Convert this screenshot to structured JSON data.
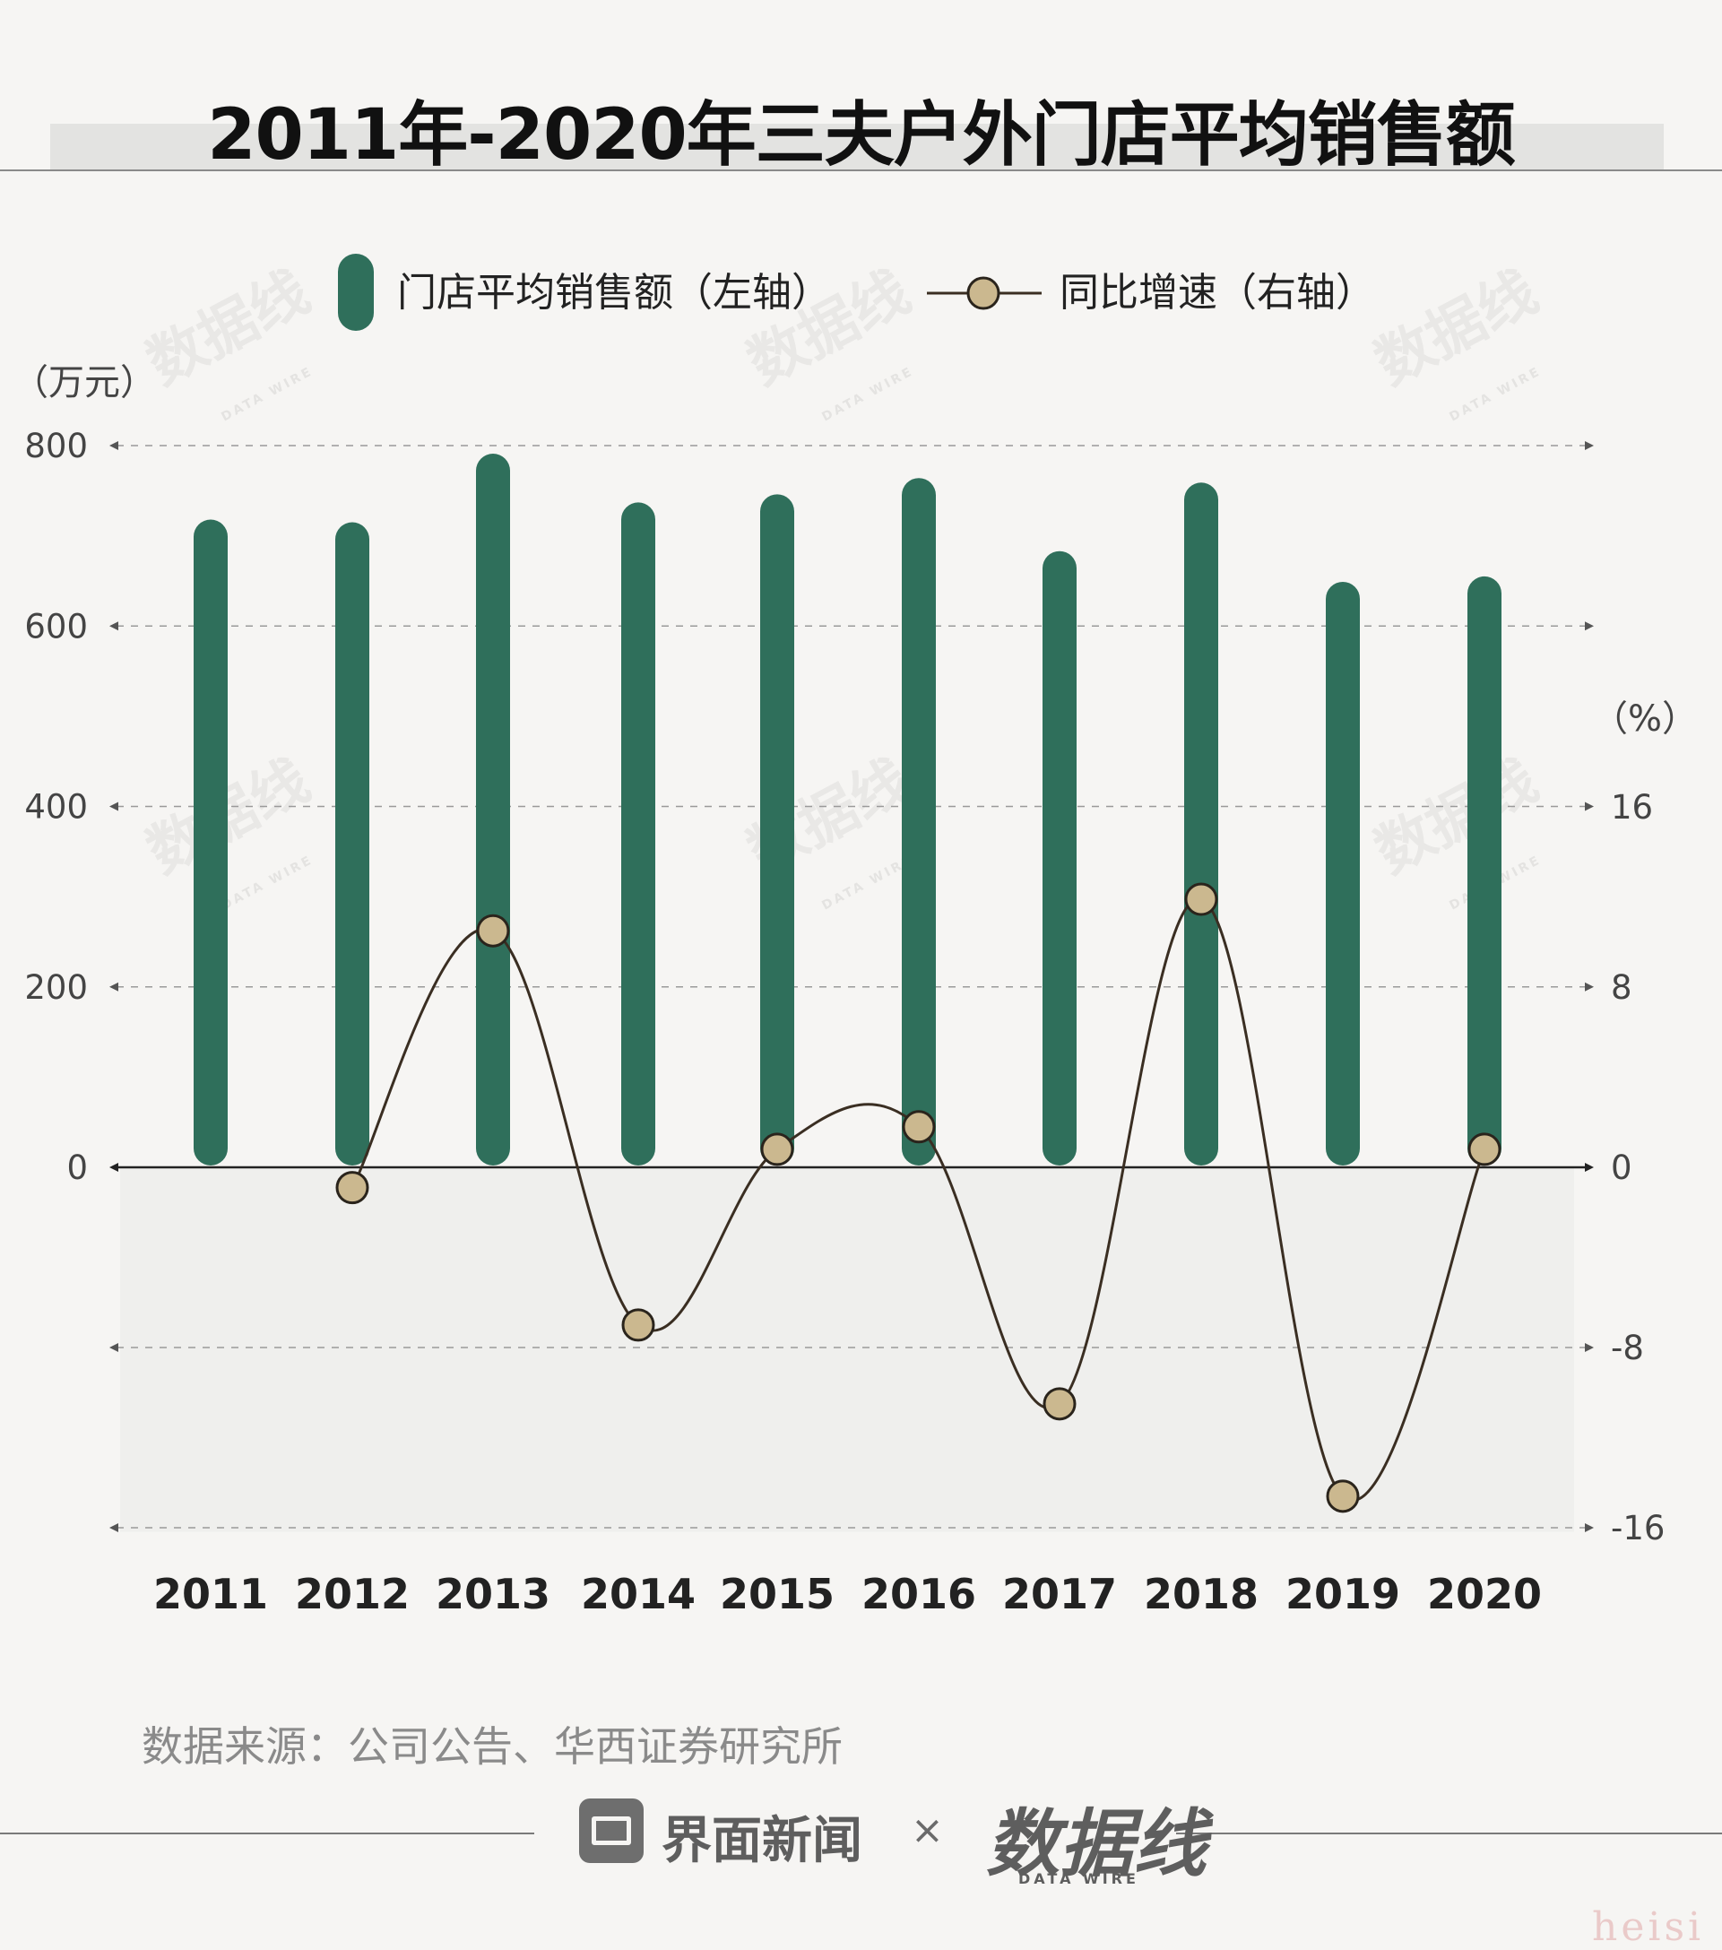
{
  "title": "2011年-2020年三夫户外门店平均销售额",
  "legend": {
    "bar_label": "门店平均销售额（左轴）",
    "line_label": "同比增速（右轴）"
  },
  "units": {
    "left": "（万元）",
    "right": "（%）"
  },
  "source": "数据来源：公司公告、华西证券研究所",
  "footer": {
    "brand": "界面新闻",
    "times": "×",
    "partner": "数据线",
    "partner_sub": "DATA WIRE"
  },
  "watermark": {
    "text": "数据线",
    "sub": "DATA WIRE"
  },
  "corner_mark": "heisi",
  "colors": {
    "bar": "#2f6f5b",
    "line": "#3a2e22",
    "marker": "#cbb88f",
    "negative_band": "#efefed"
  },
  "chart_data": {
    "type": "bar",
    "categories": [
      "2011",
      "2012",
      "2013",
      "2014",
      "2015",
      "2016",
      "2017",
      "2018",
      "2019",
      "2020"
    ],
    "series": [
      {
        "name": "门店平均销售额（左轴）",
        "axis": "left",
        "type": "bar",
        "values": [
          718,
          715,
          791,
          737,
          746,
          764,
          683,
          759,
          649,
          655
        ]
      },
      {
        "name": "同比增速（右轴）",
        "axis": "right",
        "type": "line",
        "values": [
          null,
          -0.9,
          10.5,
          -7.0,
          0.8,
          1.8,
          -10.5,
          11.9,
          -14.6,
          0.8
        ]
      }
    ],
    "y_left": {
      "ticks": [
        0,
        200,
        400,
        600,
        800
      ],
      "range": [
        -400,
        800
      ]
    },
    "y_right": {
      "ticks": [
        -16,
        -8,
        0,
        8,
        16
      ],
      "range": [
        -16,
        32
      ]
    },
    "grid": true,
    "legend_position": "top"
  }
}
